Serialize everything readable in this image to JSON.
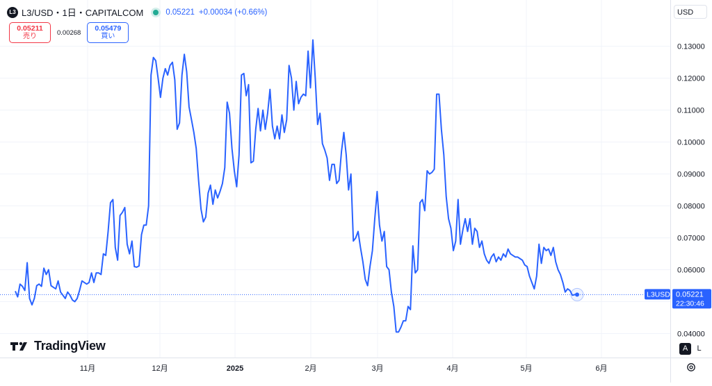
{
  "header": {
    "symbol_icon": "L3",
    "title": "L3/USD・1日・CAPITALCOM",
    "price": "0.05221",
    "change": "+0.00034 (+0.66%)"
  },
  "quote": {
    "sell_price": "0.05211",
    "sell_label": "売り",
    "spread": "0.00268",
    "buy_price": "0.05479",
    "buy_label": "買い"
  },
  "currency": "USD",
  "price_label": {
    "symbol": "L3USD",
    "value": "0.05221",
    "countdown": "22:30:46"
  },
  "logo_text": "TradingView",
  "scale_buttons": [
    "A",
    "L"
  ],
  "colors": {
    "line": "#2962ff",
    "up": "#22ab94",
    "down": "#f23645",
    "grid": "#f0f3fa"
  },
  "chart_data": {
    "type": "line",
    "series": [
      {
        "values": [
          0.0533,
          0.0515,
          0.0555,
          0.0548,
          0.0535,
          0.0622,
          0.051,
          0.049,
          0.051,
          0.055,
          0.0555,
          0.0548,
          0.0605,
          0.0585,
          0.06,
          0.055,
          0.0545,
          0.054,
          0.0565,
          0.053,
          0.052,
          0.051,
          0.053,
          0.052,
          0.0505,
          0.05,
          0.051,
          0.0535,
          0.0565,
          0.056,
          0.0555,
          0.056,
          0.059,
          0.056,
          0.059,
          0.059,
          0.0585,
          0.065,
          0.0645,
          0.072,
          0.081,
          0.082,
          0.067,
          0.063,
          0.077,
          0.078,
          0.0795,
          0.068,
          0.065,
          0.069,
          0.061,
          0.0608,
          0.0612,
          0.071,
          0.074,
          0.074,
          0.08,
          0.121,
          0.1265,
          0.1255,
          0.12,
          0.114,
          0.12,
          0.123,
          0.121,
          0.124,
          0.125,
          0.1195,
          0.104,
          0.106,
          0.121,
          0.1275,
          0.122,
          0.111,
          0.107,
          0.103,
          0.098,
          0.088,
          0.079,
          0.075,
          0.0765,
          0.084,
          0.0865,
          0.0805,
          0.085,
          0.0825,
          0.0845,
          0.087,
          0.092,
          0.1125,
          0.109,
          0.098,
          0.091,
          0.086,
          0.096,
          0.121,
          0.1215,
          0.1145,
          0.118,
          0.0935,
          0.094,
          0.104,
          0.1105,
          0.1035,
          0.11,
          0.104,
          0.109,
          0.1165,
          0.105,
          0.101,
          0.105,
          0.101,
          0.1085,
          0.103,
          0.107,
          0.124,
          0.12,
          0.11,
          0.119,
          0.112,
          0.114,
          0.115,
          0.1145,
          0.1285,
          0.117,
          0.132,
          0.12,
          0.1055,
          0.109,
          0.0995,
          0.0975,
          0.095,
          0.088,
          0.093,
          0.093,
          0.087,
          0.088,
          0.097,
          0.103,
          0.096,
          0.085,
          0.09,
          0.069,
          0.07,
          0.072,
          0.067,
          0.0625,
          0.057,
          0.055,
          0.061,
          0.066,
          0.076,
          0.0845,
          0.074,
          0.069,
          0.072,
          0.061,
          0.06,
          0.053,
          0.0485,
          0.0405,
          0.0405,
          0.042,
          0.044,
          0.044,
          0.0485,
          0.0475,
          0.0675,
          0.059,
          0.06,
          0.081,
          0.082,
          0.0785,
          0.091,
          0.09,
          0.0905,
          0.0915,
          0.115,
          0.115,
          0.104,
          0.096,
          0.083,
          0.076,
          0.073,
          0.066,
          0.069,
          0.082,
          0.068,
          0.0725,
          0.076,
          0.072,
          0.076,
          0.068,
          0.073,
          0.072,
          0.067,
          0.069,
          0.065,
          0.063,
          0.062,
          0.064,
          0.065,
          0.0625,
          0.064,
          0.063,
          0.065,
          0.064,
          0.0665,
          0.065,
          0.0645,
          0.064,
          0.064,
          0.0635,
          0.063,
          0.0615,
          0.061,
          0.058,
          0.056,
          0.054,
          0.058,
          0.068,
          0.062,
          0.067,
          0.066,
          0.0665,
          0.0645,
          0.067,
          0.0625,
          0.06,
          0.0585,
          0.056,
          0.053,
          0.054,
          0.0535,
          0.052,
          0.0522,
          0.0522
        ]
      }
    ],
    "x_tick_labels": [
      "11月",
      "12月",
      "2025",
      "2月",
      "3月",
      "4月",
      "5月",
      "6月"
    ],
    "y_tick_labels": [
      "0.04000",
      "0.05000",
      "0.06000",
      "0.07000",
      "0.08000",
      "0.09000",
      "0.10000",
      "0.11000",
      "0.12000",
      "0.13000"
    ],
    "y_ticks": [
      0.04,
      0.05,
      0.06,
      0.07,
      0.08,
      0.09,
      0.1,
      0.11,
      0.12,
      0.13
    ],
    "ylim": [
      0.0325,
      0.1445
    ],
    "last_value": 0.05221,
    "grid": true
  }
}
